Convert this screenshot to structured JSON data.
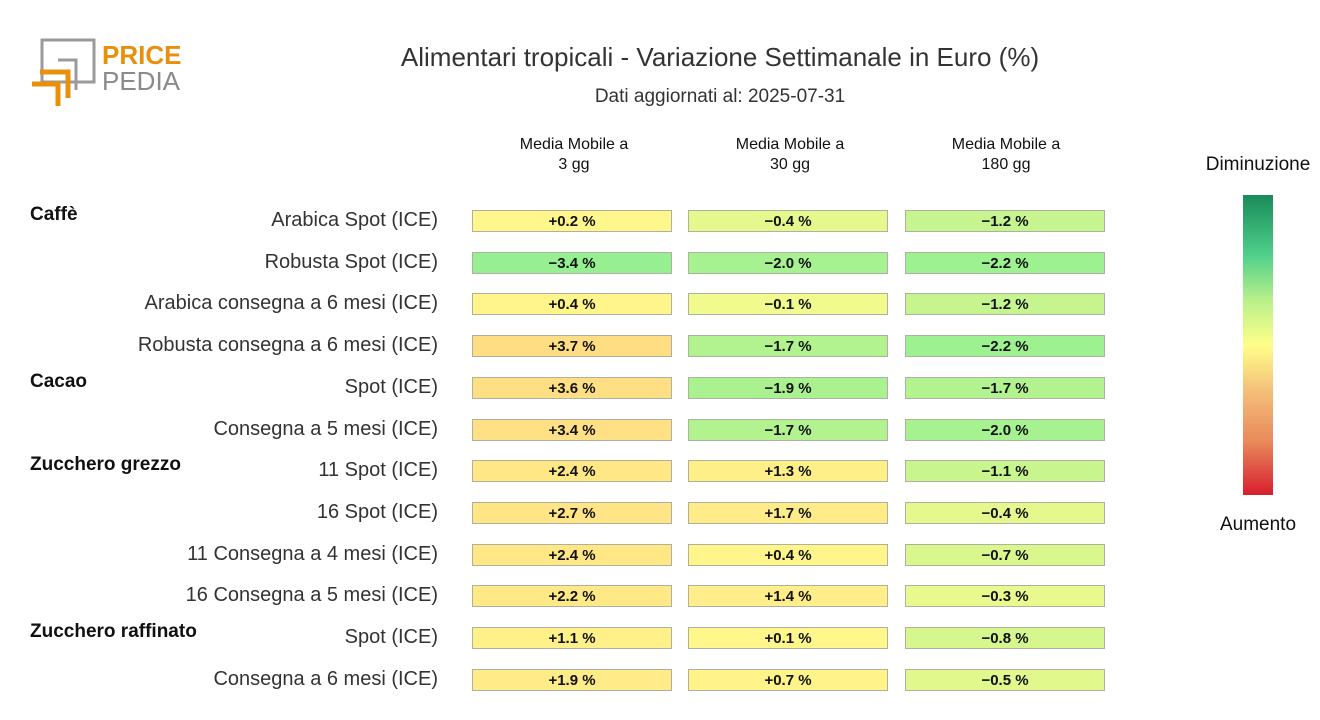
{
  "logo": {
    "line1": "PRICE",
    "line2": "PEDIA",
    "accent_color": "#e8900c",
    "gray_color": "#8a8a8a"
  },
  "chart_data": {
    "type": "table",
    "title": "Alimentari tropicali - Variazione Settimanale in Euro (%)",
    "subtitle": "Dati aggiornati al: 2025-07-31",
    "columns": [
      {
        "line1": "Media Mobile a",
        "line2": "3 gg"
      },
      {
        "line1": "Media Mobile a",
        "line2": "30 gg"
      },
      {
        "line1": "Media Mobile a",
        "line2": "180 gg"
      }
    ],
    "groups": [
      {
        "name": "Caffè",
        "rows": [
          {
            "label": "Arabica Spot (ICE)",
            "values": [
              0.2,
              -0.4,
              -1.2
            ],
            "display": [
              "+0.2 %",
              "−0.4 %",
              "−1.2 %"
            ]
          },
          {
            "label": "Robusta Spot (ICE)",
            "values": [
              -3.4,
              -2.0,
              -2.2
            ],
            "display": [
              "−3.4 %",
              "−2.0 %",
              "−2.2 %"
            ]
          },
          {
            "label": "Arabica consegna a 6 mesi (ICE)",
            "values": [
              0.4,
              -0.1,
              -1.2
            ],
            "display": [
              "+0.4 %",
              "−0.1 %",
              "−1.2 %"
            ]
          },
          {
            "label": "Robusta consegna a 6 mesi (ICE)",
            "values": [
              3.7,
              -1.7,
              -2.2
            ],
            "display": [
              "+3.7 %",
              "−1.7 %",
              "−2.2 %"
            ]
          }
        ]
      },
      {
        "name": "Cacao",
        "rows": [
          {
            "label": "Spot (ICE)",
            "values": [
              3.6,
              -1.9,
              -1.7
            ],
            "display": [
              "+3.6 %",
              "−1.9 %",
              "−1.7 %"
            ]
          },
          {
            "label": "Consegna a 5 mesi (ICE)",
            "values": [
              3.4,
              -1.7,
              -2.0
            ],
            "display": [
              "+3.4 %",
              "−1.7 %",
              "−2.0 %"
            ]
          }
        ]
      },
      {
        "name": "Zucchero grezzo",
        "rows": [
          {
            "label": "11 Spot (ICE)",
            "values": [
              2.4,
              1.3,
              -1.1
            ],
            "display": [
              "+2.4 %",
              "+1.3 %",
              "−1.1 %"
            ]
          },
          {
            "label": "16 Spot (ICE)",
            "values": [
              2.7,
              1.7,
              -0.4
            ],
            "display": [
              "+2.7 %",
              "+1.7 %",
              "−0.4 %"
            ]
          },
          {
            "label": "11 Consegna a 4 mesi (ICE)",
            "values": [
              2.4,
              0.4,
              -0.7
            ],
            "display": [
              "+2.4 %",
              "+0.4 %",
              "−0.7 %"
            ]
          },
          {
            "label": "16 Consegna a 5 mesi (ICE)",
            "values": [
              2.2,
              1.4,
              -0.3
            ],
            "display": [
              "+2.2 %",
              "+1.4 %",
              "−0.3 %"
            ]
          }
        ]
      },
      {
        "name": "Zucchero raffinato",
        "rows": [
          {
            "label": "Spot (ICE)",
            "values": [
              1.1,
              0.1,
              -0.8
            ],
            "display": [
              "+1.1 %",
              "+0.1 %",
              "−0.8 %"
            ]
          },
          {
            "label": "Consegna a 6 mesi (ICE)",
            "values": [
              1.9,
              0.7,
              -0.5
            ],
            "display": [
              "+1.9 %",
              "+0.7 %",
              "−0.5 %"
            ]
          }
        ]
      }
    ],
    "legend": {
      "top_label": "Diminuzione",
      "bottom_label": "Aumento"
    }
  }
}
